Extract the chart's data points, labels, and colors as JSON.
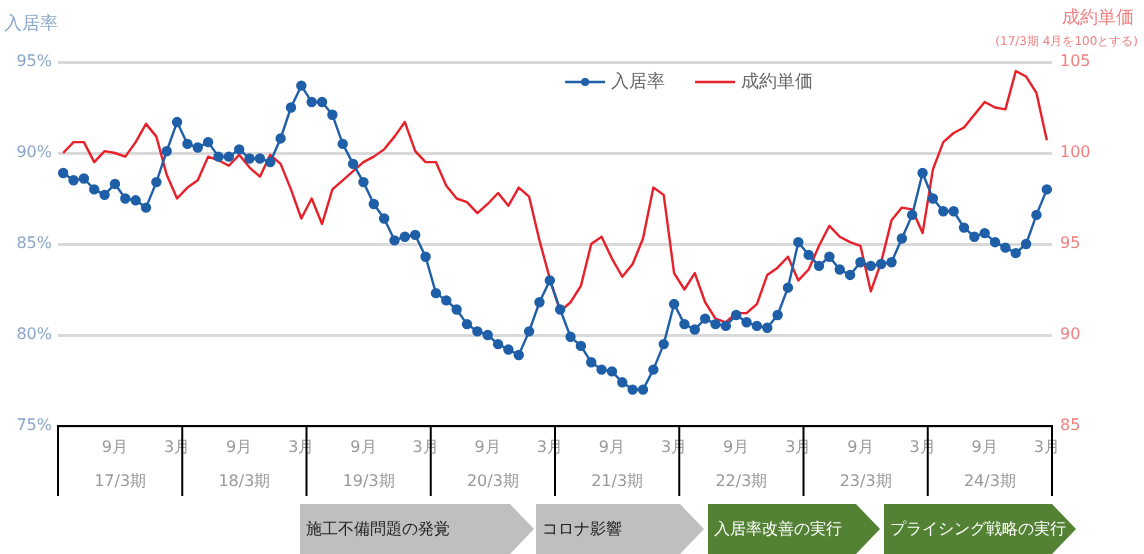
{
  "chart_data": {
    "type": "line",
    "ylabel": "入居率",
    "y2label": "成約単価",
    "annotations": [
      "(17/3期 4月を100とする)",
      "17/3期",
      "18/3期",
      "19/3期",
      "20/3期",
      "21/3期",
      "22/3期",
      "23/3期",
      "24/3期",
      "施工不備問題の発覚",
      "コロナ影響",
      "入居率改善の実行",
      "プライシング戦略の実行"
    ],
    "categories": [
      null,
      null,
      null,
      null,
      null,
      "9月",
      null,
      null,
      null,
      null,
      null,
      "3月",
      null,
      null,
      null,
      null,
      null,
      "9月",
      null,
      null,
      null,
      null,
      null,
      "3月",
      null,
      null,
      null,
      null,
      null,
      "9月",
      null,
      null,
      null,
      null,
      null,
      "3月",
      null,
      null,
      null,
      null,
      null,
      "9月",
      null,
      null,
      null,
      null,
      null,
      "3月",
      null,
      null,
      null,
      null,
      null,
      "9月",
      null,
      null,
      null,
      null,
      null,
      "3月",
      null,
      null,
      null,
      null,
      null,
      "9月",
      null,
      null,
      null,
      null,
      null,
      "3月",
      null,
      null,
      null,
      null,
      null,
      "9月",
      null,
      null,
      null,
      null,
      null,
      "3月",
      null,
      null,
      null,
      null,
      null,
      "9月",
      null,
      null,
      null,
      null,
      null,
      "3月"
    ],
    "series": [
      {
        "name": "入居率",
        "color": "#1f5fa8",
        "marker": "circle",
        "values": [
          88.9,
          88.5,
          88.6,
          88.0,
          87.7,
          88.3,
          87.5,
          87.4,
          87.0,
          88.4,
          90.1,
          91.7,
          90.5,
          90.3,
          90.6,
          89.8,
          89.8,
          90.2,
          89.7,
          89.7,
          89.5,
          90.8,
          92.5,
          93.7,
          92.8,
          92.8,
          92.1,
          90.5,
          89.4,
          88.4,
          87.2,
          86.4,
          85.2,
          85.4,
          85.5,
          84.3,
          82.3,
          81.9,
          81.4,
          80.6,
          80.2,
          80.0,
          79.5,
          79.2,
          78.9,
          80.2,
          81.8,
          83.0,
          81.4,
          79.9,
          79.4,
          78.5,
          78.1,
          78.0,
          77.4,
          77.0,
          77.0,
          78.1,
          79.5,
          81.7,
          80.6,
          80.3,
          80.9,
          80.6,
          80.5,
          81.1,
          80.7,
          80.5,
          80.4,
          81.1,
          82.6,
          85.1,
          84.4,
          83.8,
          84.3,
          83.6,
          83.3,
          84.0,
          83.8,
          83.9,
          84.0,
          85.3,
          86.6,
          88.9,
          87.5,
          86.8,
          86.8,
          85.9,
          85.4,
          85.6,
          85.1,
          84.8,
          84.5,
          85.0,
          86.6,
          88.0
        ]
      },
      {
        "name": "成約単価",
        "color": "#e8202a",
        "marker": "none",
        "axis": "y2",
        "values": [
          100.0,
          100.6,
          100.6,
          99.5,
          100.1,
          100.0,
          99.8,
          100.6,
          101.6,
          100.9,
          98.8,
          97.5,
          98.1,
          98.5,
          99.8,
          99.6,
          99.3,
          99.9,
          99.2,
          98.7,
          99.9,
          99.4,
          98.0,
          96.4,
          97.5,
          96.1,
          98.0,
          98.5,
          99.0,
          99.5,
          99.8,
          100.2,
          100.9,
          101.7,
          100.1,
          99.5,
          99.5,
          98.2,
          97.5,
          97.3,
          96.7,
          97.2,
          97.8,
          97.1,
          98.1,
          97.6,
          95.2,
          93.1,
          91.3,
          91.8,
          92.7,
          95.0,
          95.4,
          94.2,
          93.2,
          93.9,
          95.3,
          98.1,
          97.7,
          93.4,
          92.5,
          93.4,
          91.8,
          90.9,
          90.7,
          91.2,
          91.2,
          91.7,
          93.3,
          93.7,
          94.3,
          93.0,
          93.6,
          94.9,
          96.0,
          95.4,
          95.1,
          94.9,
          92.4,
          94.0,
          96.3,
          97.0,
          96.9,
          95.6,
          99.1,
          100.6,
          101.1,
          101.4,
          102.1,
          102.8,
          102.5,
          102.4,
          104.5,
          104.2,
          103.3,
          100.7
        ]
      }
    ],
    "ylim": [
      75,
      95
    ],
    "yticks": [
      {
        "value": 75,
        "label": "75%"
      },
      {
        "value": 80,
        "label": "80%"
      },
      {
        "value": 85,
        "label": "85%"
      },
      {
        "value": 90,
        "label": "90%"
      },
      {
        "value": 95,
        "label": "95%"
      }
    ],
    "y2lim": [
      85,
      105
    ],
    "y2ticks": [
      85,
      90,
      95,
      100,
      105
    ],
    "grid": "y",
    "legend": "top",
    "line_style": "solid"
  }
}
